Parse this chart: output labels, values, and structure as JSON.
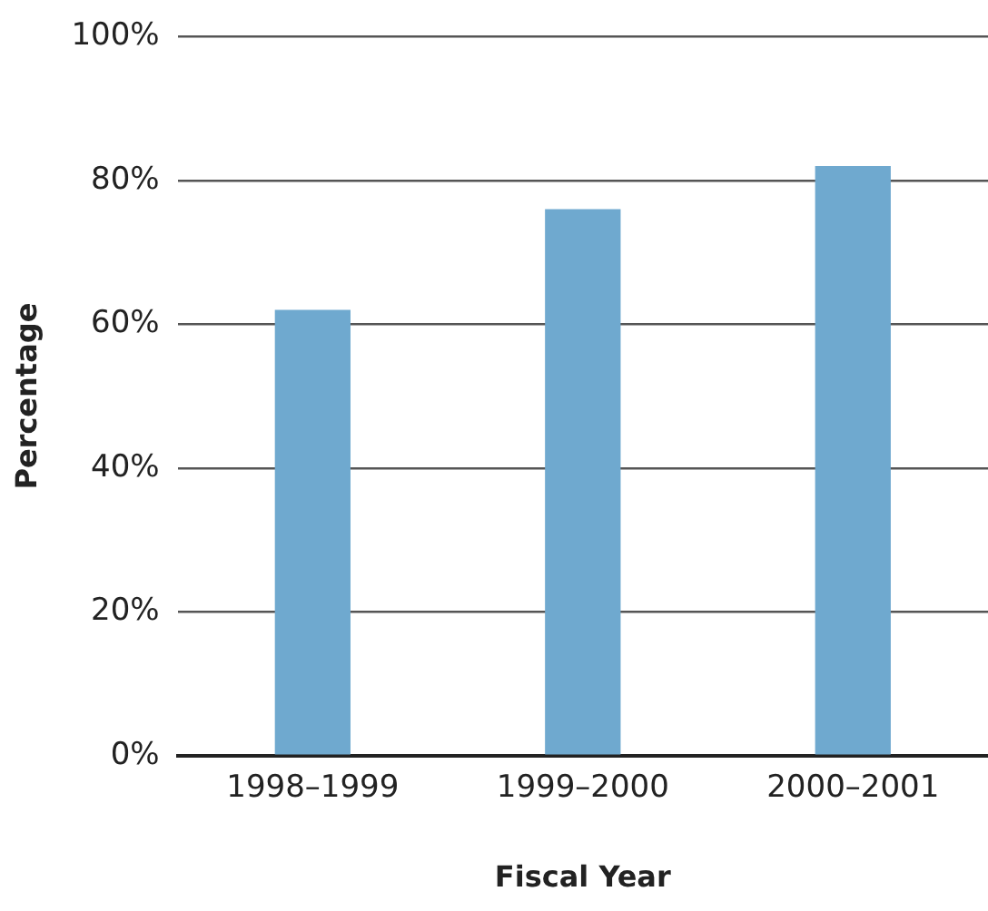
{
  "chart_data": {
    "type": "bar",
    "xlabel": "Fiscal Year",
    "ylabel": "Percentage",
    "categories": [
      "1998–1999",
      "1999–2000",
      "2000–2001"
    ],
    "values": [
      62,
      76,
      82
    ],
    "color": "#6fa9cf",
    "ylim": [
      0,
      100
    ],
    "yticks": [
      {
        "value": 0,
        "label": "0%"
      },
      {
        "value": 20,
        "label": "20%"
      },
      {
        "value": 40,
        "label": "40%"
      },
      {
        "value": 60,
        "label": "60%"
      },
      {
        "value": 80,
        "label": "80%"
      },
      {
        "value": 100,
        "label": "100%"
      }
    ],
    "grid": "y",
    "legend": false
  }
}
